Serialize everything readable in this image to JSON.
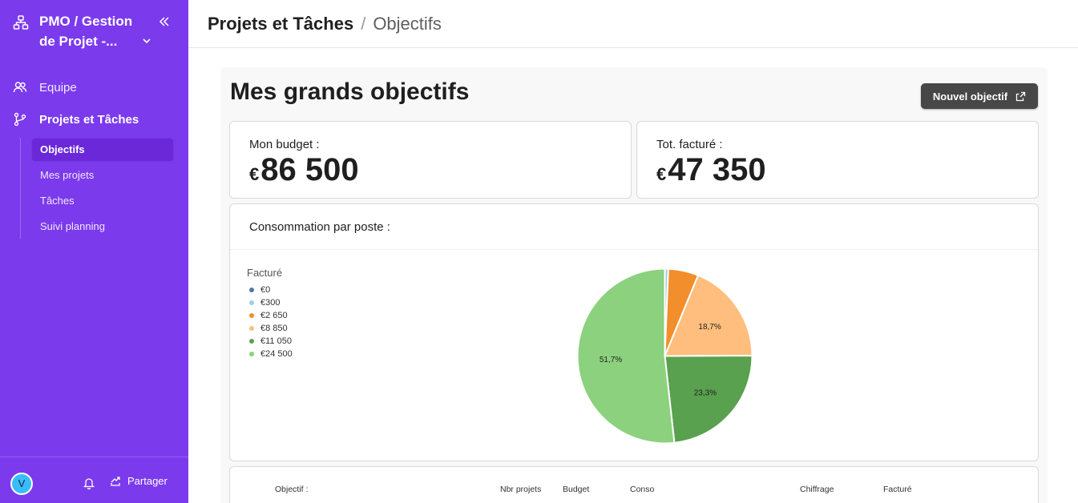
{
  "sidebar": {
    "workspace_title": "PMO / Gestion de Projet -...",
    "nav": [
      {
        "label": "Equipe",
        "icon": "team-icon"
      },
      {
        "label": "Projets et Tâches",
        "icon": "git-branch-icon"
      }
    ],
    "subnav": [
      {
        "label": "Objectifs",
        "active": true
      },
      {
        "label": "Mes projets",
        "active": false
      },
      {
        "label": "Tâches",
        "active": false
      },
      {
        "label": "Suivi planning",
        "active": false
      }
    ],
    "footer": {
      "avatar_initial": "V",
      "share_label": "Partager"
    },
    "accent_color": "#7c3aed"
  },
  "breadcrumb": {
    "parent": "Projets et Tâches",
    "separator": "/",
    "current": "Objectifs"
  },
  "page": {
    "title": "Mes grands objectifs",
    "new_button_label": "Nouvel objectif"
  },
  "kpis": {
    "budget": {
      "label": "Mon budget :",
      "currency": "€",
      "value": "86 500"
    },
    "billed": {
      "label": "Tot. facturé :",
      "currency": "€",
      "value": "47 350"
    }
  },
  "chart_card": {
    "title": "Consommation par poste :"
  },
  "chart_data": {
    "type": "pie",
    "legend_title": "Facturé",
    "legend_placement": "left",
    "categories": [
      "€0",
      "€300",
      "€2 650",
      "€8 850",
      "€11 050",
      "€24 500"
    ],
    "values": [
      0,
      300,
      2650,
      8850,
      11050,
      24500
    ],
    "colors": [
      "#4e79a7",
      "#a0cbe8",
      "#f28e2b",
      "#ffbe7d",
      "#59a14f",
      "#8cd17d"
    ],
    "slice_labels": [
      "",
      "",
      "",
      "18,7%",
      "23,3%",
      "51,7%"
    ]
  },
  "table": {
    "headers": [
      "Objectif :",
      "Nbr projets",
      "Budget",
      "Conso",
      "Chiffrage",
      "Facturé"
    ]
  }
}
